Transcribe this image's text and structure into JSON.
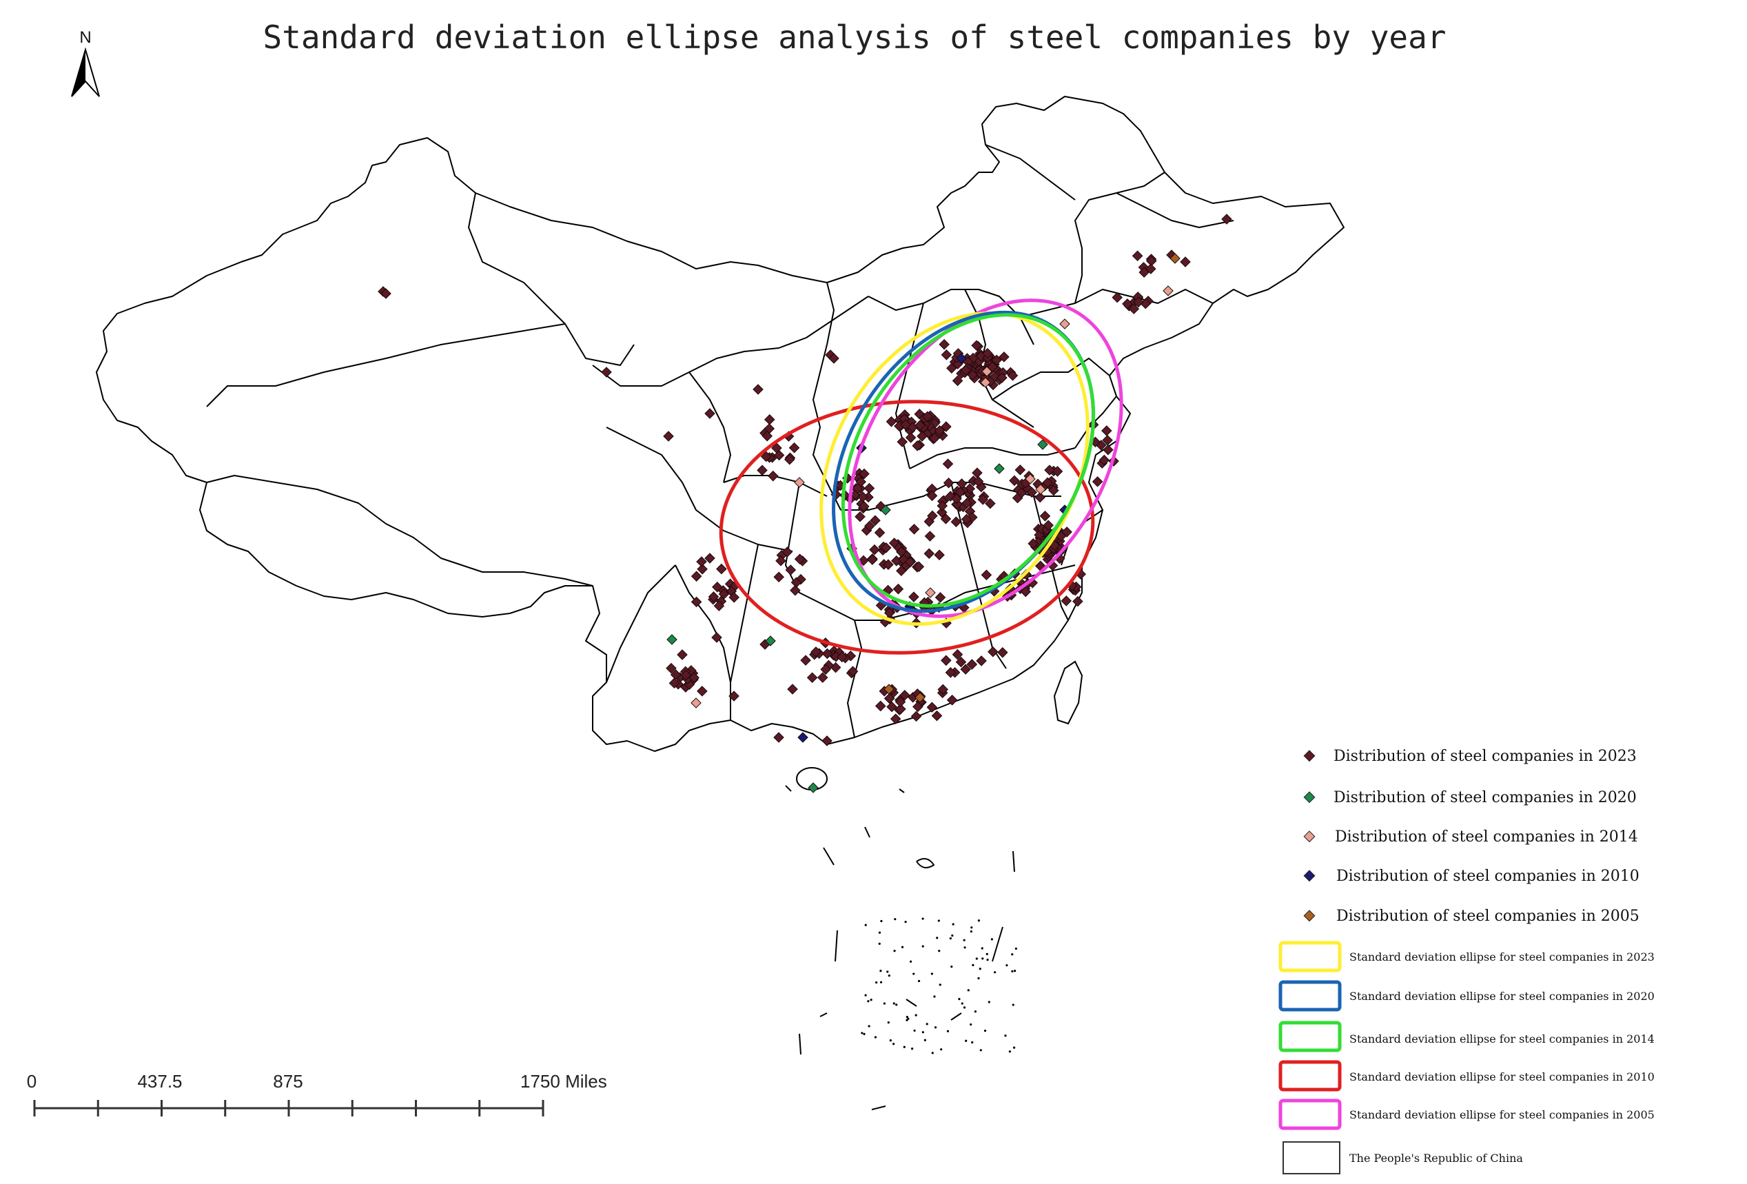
{
  "title": "Standard deviation ellipse analysis of steel companies by year",
  "north_label": "N",
  "scale_bar": {
    "labels": [
      "0",
      "437.5",
      "875",
      "1750 Miles"
    ]
  },
  "colors": {
    "c2023": "#5a1a24",
    "c2020": "#1c8a4a",
    "c2014": "#e8a090",
    "c2010": "#1a1a70",
    "c2005": "#a86020",
    "e2023": "#ffee33",
    "e2020": "#1a64b4",
    "e2014": "#33dd33",
    "e2010": "#e02020",
    "e2005": "#ee44dd",
    "boundary": "#333333"
  },
  "legend": {
    "points": [
      {
        "key": "c2023",
        "label": "Distribution of steel companies in 2023"
      },
      {
        "key": "c2020",
        "label": "Distribution of steel companies in 2020"
      },
      {
        "key": "c2014",
        "label": "Distribution of steel companies in 2014"
      },
      {
        "key": "c2010",
        "label": "Distribution of steel companies in 2010"
      },
      {
        "key": "c2005",
        "label": "Distribution of steel companies in 2005"
      }
    ],
    "ellipses": [
      {
        "key": "e2023",
        "label": "Standard deviation ellipse for steel companies in 2023"
      },
      {
        "key": "e2020",
        "label": "Standard deviation ellipse for steel companies in 2020"
      },
      {
        "key": "e2014",
        "label": "Standard deviation ellipse for steel companies in 2014"
      },
      {
        "key": "e2010",
        "label": "Standard deviation ellipse for steel companies in 2010"
      },
      {
        "key": "e2005",
        "label": "Standard deviation ellipse for steel companies in 2005"
      }
    ],
    "boundary": {
      "key": "boundary",
      "label": "The People's Republic of China"
    }
  }
}
